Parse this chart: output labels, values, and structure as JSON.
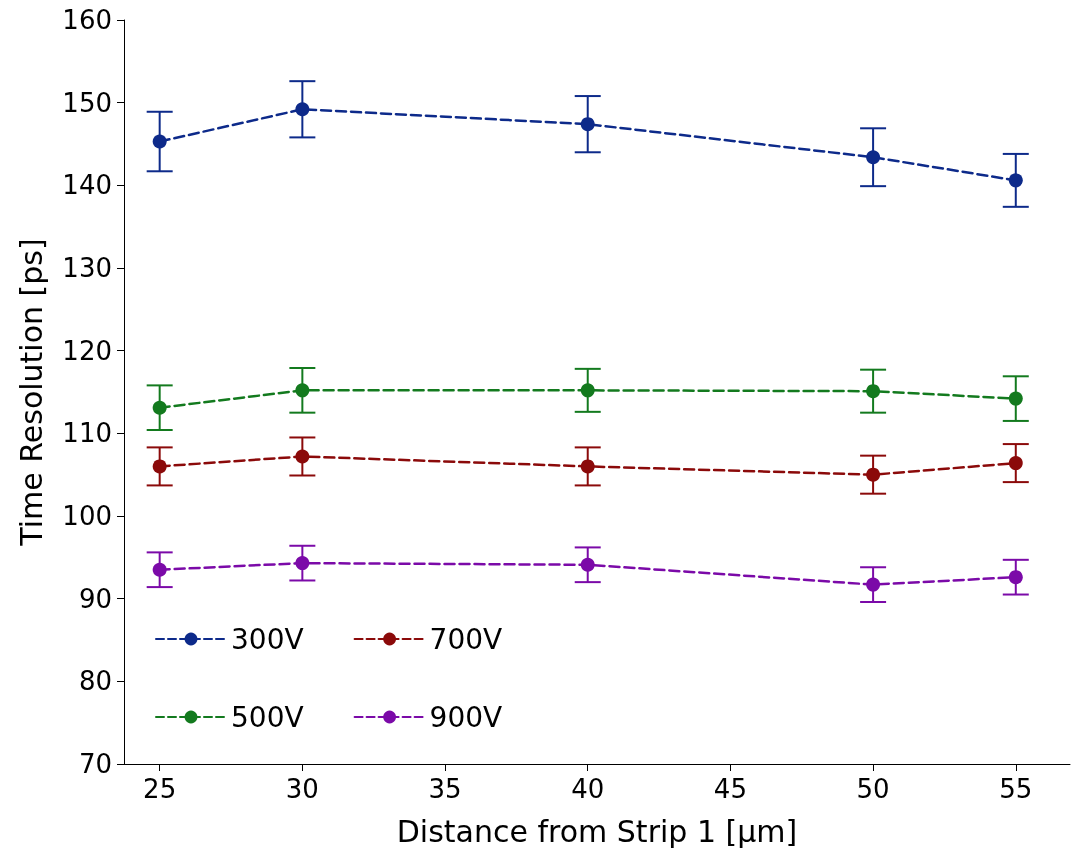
{
  "chart_data": {
    "type": "line",
    "xlabel": "Distance from Strip 1 [µm]",
    "ylabel": "Time Resolution [ps]",
    "x": [
      25,
      30,
      40,
      50,
      55
    ],
    "xlim": [
      23.75,
      56.9
    ],
    "xticks": [
      25,
      30,
      35,
      40,
      45,
      50,
      55
    ],
    "ylim": [
      70,
      160
    ],
    "yticks": [
      70,
      80,
      90,
      100,
      110,
      120,
      130,
      140,
      150,
      160
    ],
    "grid": false,
    "legend": "bottom left",
    "marker": "circle",
    "line_style": "dashed",
    "series": [
      {
        "name": "300V",
        "color": "#0d2a8a",
        "values": [
          145.3,
          149.2,
          147.4,
          143.4,
          140.6
        ],
        "errors": [
          3.6,
          3.4,
          3.4,
          3.5,
          3.2
        ]
      },
      {
        "name": "500V",
        "color": "#137a1e",
        "values": [
          113.1,
          115.2,
          115.2,
          115.1,
          114.2
        ],
        "errors": [
          2.7,
          2.7,
          2.6,
          2.6,
          2.7
        ]
      },
      {
        "name": "700V",
        "color": "#8b0a0a",
        "values": [
          106.0,
          107.2,
          106.0,
          105.0,
          106.4
        ],
        "errors": [
          2.3,
          2.3,
          2.3,
          2.3,
          2.3
        ]
      },
      {
        "name": "900V",
        "color": "#7b0aa8",
        "values": [
          93.5,
          94.3,
          94.1,
          91.7,
          92.6
        ],
        "errors": [
          2.1,
          2.1,
          2.1,
          2.1,
          2.1
        ]
      }
    ]
  }
}
